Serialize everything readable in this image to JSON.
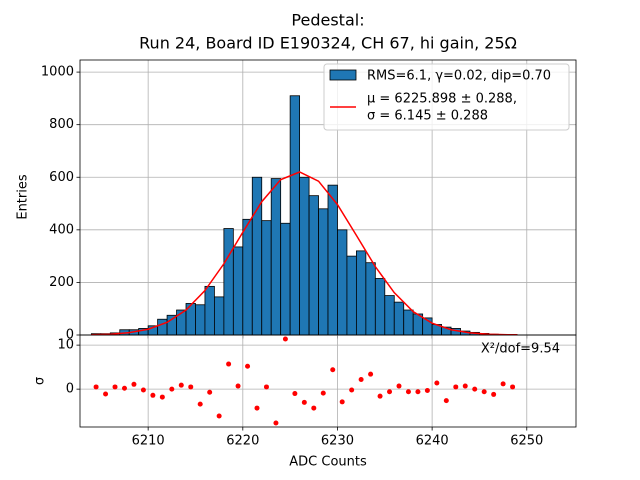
{
  "chart_data": [
    {
      "type": "histogram",
      "title": [
        "Pedestal:",
        "Run 24, Board ID E190324, CH 67, hi gain, 25Ω"
      ],
      "ylabel": "Entries",
      "name": "RMS=6.1, γ=0.02, dip=0.70",
      "color": "#1f77b4",
      "bins": [
        6204,
        6205,
        6206,
        6207,
        6208,
        6209,
        6210,
        6211,
        6212,
        6213,
        6214,
        6215,
        6216,
        6217,
        6218,
        6219,
        6220,
        6221,
        6222,
        6223,
        6224,
        6225,
        6226,
        6227,
        6228,
        6229,
        6230,
        6231,
        6232,
        6233,
        6234,
        6235,
        6236,
        6237,
        6238,
        6239,
        6240,
        6241,
        6242,
        6243,
        6244,
        6245,
        6246,
        6247,
        6248,
        6249
      ],
      "counts": [
        5,
        5,
        8,
        20,
        20,
        25,
        35,
        60,
        75,
        95,
        120,
        115,
        185,
        145,
        405,
        335,
        440,
        600,
        435,
        595,
        425,
        910,
        600,
        530,
        480,
        570,
        400,
        300,
        320,
        275,
        215,
        150,
        125,
        95,
        80,
        65,
        40,
        30,
        25,
        15,
        10,
        6,
        3,
        2,
        1
      ],
      "series": [
        {
          "name": [
            "μ = 6225.898 ± 0.288,",
            "σ = 6.145 ± 0.288"
          ],
          "color": "red",
          "x": [
            6204,
            6206,
            6208,
            6210,
            6212,
            6214,
            6216,
            6218,
            6220,
            6222,
            6224,
            6226,
            6228,
            6230,
            6232,
            6234,
            6236,
            6238,
            6240,
            6242,
            6244,
            6246,
            6248,
            6249
          ],
          "values": [
            1,
            3,
            9,
            22,
            48,
            95,
            169,
            271,
            391,
            507,
            591,
            620,
            585,
            496,
            379,
            260,
            161,
            89,
            45,
            20,
            8,
            3,
            1,
            1
          ]
        }
      ],
      "xlim": [
        6202.8,
        6255.2
      ],
      "xticks": [
        6210,
        6220,
        6230,
        6240,
        6250
      ],
      "ylim": [
        0,
        1046
      ],
      "yticks": [
        0,
        200,
        400,
        600,
        800,
        1000
      ],
      "grid": true,
      "legend": "upper right"
    },
    {
      "type": "scatter",
      "ylabel": "σ",
      "xlabel": "ADC Counts",
      "annotation": "X²/dof=9.54",
      "color": "red",
      "x": [
        6204.5,
        6205.5,
        6206.5,
        6207.5,
        6208.5,
        6209.5,
        6210.5,
        6211.5,
        6212.5,
        6213.5,
        6214.5,
        6215.5,
        6216.5,
        6217.5,
        6218.5,
        6219.5,
        6220.5,
        6221.5,
        6222.5,
        6223.5,
        6224.5,
        6225.5,
        6226.5,
        6227.5,
        6228.5,
        6229.5,
        6230.5,
        6231.5,
        6232.5,
        6233.5,
        6234.5,
        6235.5,
        6236.5,
        6237.5,
        6238.5,
        6239.5,
        6240.5,
        6241.5,
        6242.5,
        6243.5,
        6244.5,
        6245.5,
        6246.5,
        6247.5,
        6248.5
      ],
      "values": [
        0.5,
        -1.1,
        0.5,
        0.2,
        1.1,
        -0.2,
        -1.4,
        -1.8,
        0.0,
        0.9,
        0.5,
        -3.4,
        -0.7,
        -6.1,
        5.7,
        0.7,
        5.2,
        -4.3,
        0.5,
        -7.7,
        11.4,
        -1.0,
        -3.0,
        -4.3,
        -0.9,
        4.4,
        -2.9,
        -0.2,
        2.2,
        3.4,
        -1.6,
        -0.6,
        0.7,
        -0.6,
        -0.6,
        -0.3,
        1.4,
        -2.6,
        0.5,
        0.7,
        0.0,
        -0.6,
        -1.2,
        1.2,
        0.5
      ],
      "xlim": [
        6202.8,
        6255.2
      ],
      "xticks": [
        6210,
        6220,
        6230,
        6240,
        6250
      ],
      "ylim": [
        -8.6,
        12.3
      ],
      "yticks": [
        0,
        10
      ],
      "grid": true
    }
  ]
}
